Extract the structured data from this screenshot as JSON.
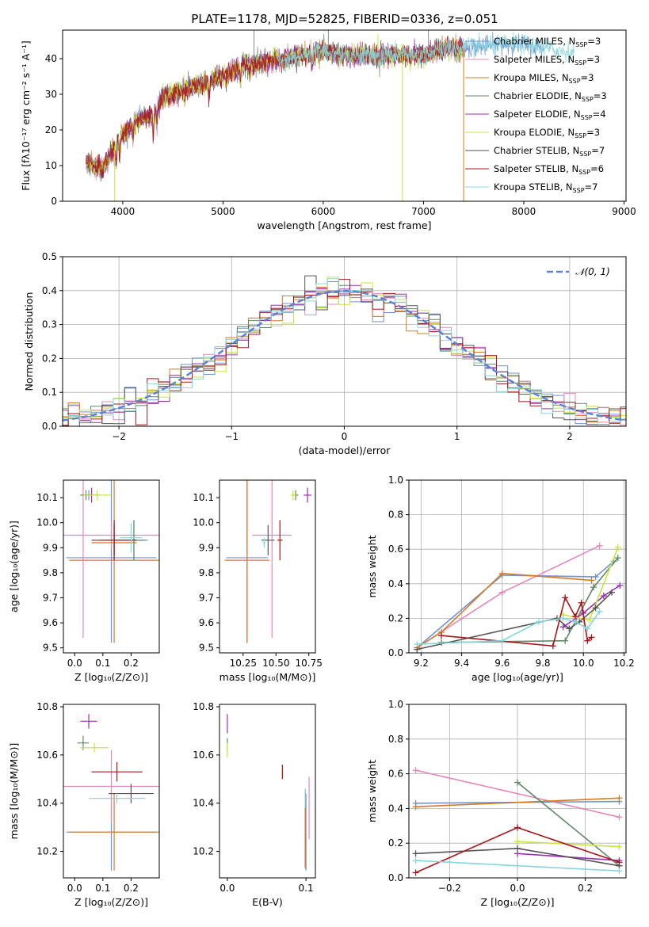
{
  "figure_title": "PLATE=1178, MJD=52825, FIBERID=0336, z=0.051",
  "colors": [
    "#6f93d6",
    "#e687b9",
    "#d87a23",
    "#5f8a67",
    "#9b2fb5",
    "#c8e63a",
    "#555555",
    "#a8161a",
    "#87d6dc"
  ],
  "chart_data": [
    {
      "id": "spectrum",
      "type": "line",
      "xlabel": "wavelength [Angstrom, rest frame]",
      "ylabel": "Flux [fλ10⁻¹⁷ erg cm⁻² s⁻¹ A⁻¹]",
      "xlim": [
        3400,
        9020
      ],
      "ylim": [
        0,
        48
      ],
      "xticks": [
        4000,
        5000,
        6000,
        7000,
        8000,
        9000
      ],
      "yticks": [
        0,
        10,
        20,
        30,
        40
      ],
      "grid": false,
      "legend_position": "right",
      "legend": [
        {
          "label": "Chabrier MILES, N",
          "sub": "SSP",
          "suffix": "=3"
        },
        {
          "label": "Salpeter MILES, N",
          "sub": "SSP",
          "suffix": "=3"
        },
        {
          "label": "Kroupa MILES, N",
          "sub": "SSP",
          "suffix": "=3"
        },
        {
          "label": "Chabrier ELODIE, N",
          "sub": "SSP",
          "suffix": "=3"
        },
        {
          "label": "Salpeter ELODIE, N",
          "sub": "SSP",
          "suffix": "=4"
        },
        {
          "label": "Kroupa ELODIE, N",
          "sub": "SSP",
          "suffix": "=3"
        },
        {
          "label": "Chabrier STELIB, N",
          "sub": "SSP",
          "suffix": "=7"
        },
        {
          "label": "Salpeter STELIB, N",
          "sub": "SSP",
          "suffix": "=6"
        },
        {
          "label": "Kroupa STELIB, N",
          "sub": "SSP",
          "suffix": "=7"
        }
      ],
      "continuum": [
        [
          3630,
          11
        ],
        [
          3800,
          9
        ],
        [
          3950,
          17
        ],
        [
          4100,
          22
        ],
        [
          4300,
          24
        ],
        [
          4400,
          29
        ],
        [
          4600,
          31
        ],
        [
          4800,
          33
        ],
        [
          5000,
          35
        ],
        [
          5200,
          38
        ],
        [
          5400,
          39
        ],
        [
          5600,
          40
        ],
        [
          5800,
          41
        ],
        [
          6000,
          42
        ],
        [
          6200,
          41
        ],
        [
          6400,
          41
        ],
        [
          6600,
          41
        ],
        [
          6800,
          41
        ],
        [
          7000,
          41
        ],
        [
          7200,
          43
        ],
        [
          7400,
          43
        ],
        [
          7800,
          44
        ],
        [
          8000,
          44
        ],
        [
          8200,
          43
        ],
        [
          8400,
          42
        ],
        [
          8650,
          42
        ]
      ],
      "features": [
        [
          3934,
          -6
        ],
        [
          3968,
          -5
        ],
        [
          4101,
          -4
        ],
        [
          4305,
          -6
        ],
        [
          4340,
          -4
        ],
        [
          4861,
          -5
        ],
        [
          5175,
          -4
        ],
        [
          5270,
          -3
        ],
        [
          5890,
          -3
        ],
        [
          6563,
          -3
        ],
        [
          6870,
          -2
        ]
      ],
      "wide_lines": [
        [
          3634,
          8200
        ],
        [
          5540,
          8500
        ]
      ],
      "dips": [
        {
          "x": 3920,
          "to": 0
        },
        {
          "x": 6790,
          "to": 0
        },
        {
          "x": 7400,
          "to": 0
        }
      ],
      "spikes": [
        {
          "x": 5310,
          "to": 48
        },
        {
          "x": 6050,
          "to": 48
        },
        {
          "x": 7050,
          "to": 48
        }
      ]
    },
    {
      "id": "residuals",
      "type": "step",
      "xlabel": "(data-model)/error",
      "ylabel": "Normed distribution",
      "xlim": [
        -2.5,
        2.5
      ],
      "ylim": [
        0,
        0.5
      ],
      "xticks": [
        -2,
        -1,
        0,
        1,
        2
      ],
      "yticks": [
        0.0,
        0.1,
        0.2,
        0.3,
        0.4,
        0.5
      ],
      "grid": true,
      "bin_width": 0.1,
      "legend_position": "upper right",
      "reference_label": "𝒩(0, 1)",
      "reference_color": "#5b82d9"
    },
    {
      "id": "age_vs_Z",
      "type": "errorbar",
      "xlabel": "Z [log₁₀(Z/Z⊙)]",
      "ylabel": "age  [log₁₀(age/yr)]",
      "xlim": [
        -0.04,
        0.3
      ],
      "ylim": [
        9.48,
        10.17
      ],
      "xticks": [
        0.0,
        0.1,
        0.2
      ],
      "yticks": [
        9.5,
        9.6,
        9.7,
        9.8,
        9.9,
        10.0,
        10.1
      ],
      "points": [
        {
          "c": 0,
          "x": 0.05,
          "y": 10.11,
          "xe": 0.03,
          "ye": 0.02
        },
        {
          "c": 0,
          "x": 0.13,
          "y": 9.86,
          "xe": 0.16,
          "ye": 0.34
        },
        {
          "c": 0,
          "x": 0.21,
          "y": 9.93,
          "xe": 0.05,
          "ye": 0.08
        },
        {
          "c": 1,
          "x": 0.03,
          "y": 9.95,
          "xe": 0.02,
          "ye": 0.41
        },
        {
          "c": 1,
          "x": 0.13,
          "y": 9.95,
          "xe": 0.17,
          "ye": 0.05
        },
        {
          "c": 2,
          "x": 0.14,
          "y": 9.85,
          "xe": 0.16,
          "ye": 0.33
        },
        {
          "c": 2,
          "x": 0.14,
          "y": 9.92,
          "xe": 0.08,
          "ye": 0.05
        },
        {
          "c": 3,
          "x": 0.04,
          "y": 10.11,
          "xe": 0.02,
          "ye": 0.02
        },
        {
          "c": 3,
          "x": 0.21,
          "y": 9.93,
          "xe": 0.04,
          "ye": 0.08
        },
        {
          "c": 4,
          "x": 0.06,
          "y": 10.11,
          "xe": 0.03,
          "ye": 0.03
        },
        {
          "c": 5,
          "x": 0.08,
          "y": 10.11,
          "xe": 0.05,
          "ye": 0.02
        },
        {
          "c": 6,
          "x": 0.14,
          "y": 9.93,
          "xe": 0.05,
          "ye": 0.06
        },
        {
          "c": 7,
          "x": 0.14,
          "y": 9.93,
          "xe": 0.08,
          "ye": 0.08
        },
        {
          "c": 8,
          "x": 0.2,
          "y": 9.94,
          "xe": 0.04,
          "ye": 0.06
        }
      ]
    },
    {
      "id": "age_vs_mass",
      "type": "errorbar",
      "xlabel": "mass [log₁₀(M/M⊙)]",
      "ylabel": "",
      "xlim": [
        10.07,
        10.8
      ],
      "ylim": [
        9.48,
        10.17
      ],
      "xticks": [
        10.25,
        10.5,
        10.75
      ],
      "yticks": [
        9.5,
        9.6,
        9.7,
        9.8,
        9.9,
        10.0,
        10.1
      ],
      "points": [
        {
          "c": 0,
          "x": 10.28,
          "y": 9.86,
          "xe": 0.16,
          "ye": 0.34
        },
        {
          "c": 1,
          "x": 10.47,
          "y": 9.95,
          "xe": 0.15,
          "ye": 0.41
        },
        {
          "c": 2,
          "x": 10.28,
          "y": 9.85,
          "xe": 0.17,
          "ye": 0.33
        },
        {
          "c": 3,
          "x": 10.65,
          "y": 10.11,
          "xe": 0.02,
          "ye": 0.02
        },
        {
          "c": 4,
          "x": 10.74,
          "y": 10.11,
          "xe": 0.03,
          "ye": 0.03
        },
        {
          "c": 5,
          "x": 10.63,
          "y": 10.11,
          "xe": 0.02,
          "ye": 0.02
        },
        {
          "c": 6,
          "x": 10.44,
          "y": 9.93,
          "xe": 0.05,
          "ye": 0.06
        },
        {
          "c": 7,
          "x": 10.53,
          "y": 9.93,
          "xe": 0.02,
          "ye": 0.08
        },
        {
          "c": 8,
          "x": 10.41,
          "y": 9.92,
          "xe": 0.01,
          "ye": 0.02
        }
      ]
    },
    {
      "id": "weight_vs_age",
      "type": "line",
      "xlabel": "age  [log₁₀(age/yr)]",
      "ylabel": "mass weight",
      "xlim": [
        9.14,
        10.21
      ],
      "ylim": [
        0,
        1.0
      ],
      "xticks": [
        9.2,
        9.4,
        9.6,
        9.8,
        10.0,
        10.2
      ],
      "yticks": [
        0.0,
        0.2,
        0.4,
        0.6,
        0.8,
        1.0
      ],
      "grid": true,
      "series": [
        {
          "c": 0,
          "x": [
            9.18,
            9.6,
            10.06,
            10.15
          ],
          "y": [
            0.03,
            0.45,
            0.44,
            0.53
          ]
        },
        {
          "c": 1,
          "x": [
            9.18,
            9.6,
            10.08
          ],
          "y": [
            0.03,
            0.35,
            0.62
          ]
        },
        {
          "c": 2,
          "x": [
            9.18,
            9.3,
            9.6,
            10.04
          ],
          "y": [
            0.03,
            0.12,
            0.46,
            0.42
          ]
        },
        {
          "c": 3,
          "x": [
            9.3,
            9.91,
            10.05,
            10.17
          ],
          "y": [
            0.06,
            0.07,
            0.38,
            0.55
          ]
        },
        {
          "c": 4,
          "x": [
            9.9,
            10.0,
            10.1,
            10.18
          ],
          "y": [
            0.15,
            0.23,
            0.33,
            0.39
          ]
        },
        {
          "c": 5,
          "x": [
            9.9,
            10.03,
            10.17
          ],
          "y": [
            0.22,
            0.19,
            0.61
          ]
        },
        {
          "c": 6,
          "x": [
            9.18,
            9.87,
            9.93,
            9.98,
            10.06,
            10.14
          ],
          "y": [
            0.02,
            0.2,
            0.14,
            0.18,
            0.26,
            0.35
          ]
        },
        {
          "c": 7,
          "x": [
            9.3,
            9.85,
            9.91,
            9.96,
            9.99,
            10.02,
            10.04
          ],
          "y": [
            0.1,
            0.04,
            0.32,
            0.21,
            0.29,
            0.07,
            0.09
          ]
        },
        {
          "c": 8,
          "x": [
            9.18,
            9.6,
            9.78,
            9.9,
            9.96,
            10.02,
            10.08
          ],
          "y": [
            0.05,
            0.07,
            0.18,
            0.2,
            0.18,
            0.14,
            0.24
          ]
        }
      ]
    },
    {
      "id": "mass_vs_Z",
      "type": "errorbar",
      "xlabel": "Z [log₁₀(Z/Z⊙)]",
      "ylabel": "mass [log₁₀(M/M⊙)]",
      "xlim": [
        -0.04,
        0.3
      ],
      "ylim": [
        10.09,
        10.81
      ],
      "xticks": [
        0.0,
        0.1,
        0.2
      ],
      "yticks": [
        10.2,
        10.4,
        10.6,
        10.8
      ],
      "points": [
        {
          "c": 0,
          "x": 0.13,
          "y": 10.28,
          "xe": 0.16,
          "ye": 0.16
        },
        {
          "c": 1,
          "x": 0.13,
          "y": 10.47,
          "xe": 0.17,
          "ye": 0.15
        },
        {
          "c": 2,
          "x": 0.14,
          "y": 10.28,
          "xe": 0.16,
          "ye": 0.16
        },
        {
          "c": 3,
          "x": 0.03,
          "y": 10.65,
          "xe": 0.02,
          "ye": 0.03
        },
        {
          "c": 4,
          "x": 0.05,
          "y": 10.74,
          "xe": 0.03,
          "ye": 0.03
        },
        {
          "c": 5,
          "x": 0.07,
          "y": 10.63,
          "xe": 0.05,
          "ye": 0.02
        },
        {
          "c": 6,
          "x": 0.2,
          "y": 10.44,
          "xe": 0.08,
          "ye": 0.04
        },
        {
          "c": 7,
          "x": 0.15,
          "y": 10.53,
          "xe": 0.09,
          "ye": 0.04
        },
        {
          "c": 8,
          "x": 0.15,
          "y": 10.42,
          "xe": 0.1,
          "ye": 0.02
        }
      ]
    },
    {
      "id": "mass_vs_EBV",
      "type": "errorbar",
      "xlabel": "E(B-V)",
      "ylabel": "",
      "xlim": [
        -0.01,
        0.112
      ],
      "ylim": [
        10.09,
        10.81
      ],
      "xticks": [
        0.0,
        0.1
      ],
      "yticks": [
        10.2,
        10.4,
        10.6,
        10.8
      ],
      "points": [
        {
          "c": 0,
          "x": 0.1,
          "y": 10.28,
          "xe": 0,
          "ye": 0.16
        },
        {
          "c": 1,
          "x": 0.104,
          "y": 10.38,
          "xe": 0,
          "ye": 0.13
        },
        {
          "c": 2,
          "x": 0.099,
          "y": 10.28,
          "xe": 0,
          "ye": 0.15
        },
        {
          "c": 3,
          "x": 0.0,
          "y": 10.64,
          "xe": 0,
          "ye": 0.03
        },
        {
          "c": 4,
          "x": 0.0,
          "y": 10.73,
          "xe": 0,
          "ye": 0.04
        },
        {
          "c": 5,
          "x": 0.0,
          "y": 10.62,
          "xe": 0,
          "ye": 0.03
        },
        {
          "c": 6,
          "x": 0.099,
          "y": 10.42,
          "xe": 0,
          "ye": 0.04
        },
        {
          "c": 7,
          "x": 0.07,
          "y": 10.53,
          "xe": 0,
          "ye": 0.03
        },
        {
          "c": 8,
          "x": 0.099,
          "y": 10.42,
          "xe": 0,
          "ye": 0.04
        }
      ]
    },
    {
      "id": "weight_vs_Z",
      "type": "line",
      "xlabel": "Z [log₁₀(Z/Z⊙)]",
      "ylabel": "mass weight",
      "xlim": [
        -0.32,
        0.32
      ],
      "ylim": [
        0,
        1.0
      ],
      "xticks": [
        -0.2,
        0.0,
        0.2
      ],
      "yticks": [
        0.0,
        0.2,
        0.4,
        0.6,
        0.8,
        1.0
      ],
      "grid": true,
      "series": [
        {
          "c": 0,
          "x": [
            -0.3,
            0.3
          ],
          "y": [
            0.43,
            0.44
          ]
        },
        {
          "c": 1,
          "x": [
            -0.3,
            0.3
          ],
          "y": [
            0.62,
            0.35
          ]
        },
        {
          "c": 2,
          "x": [
            -0.3,
            0.3
          ],
          "y": [
            0.41,
            0.46
          ]
        },
        {
          "c": 3,
          "x": [
            0.0,
            0.3
          ],
          "y": [
            0.55,
            0.07
          ]
        },
        {
          "c": 4,
          "x": [
            0.0,
            0.3
          ],
          "y": [
            0.14,
            0.1
          ]
        },
        {
          "c": 5,
          "x": [
            0.0,
            0.3
          ],
          "y": [
            0.21,
            0.18
          ]
        },
        {
          "c": 6,
          "x": [
            -0.3,
            0.0,
            0.3
          ],
          "y": [
            0.14,
            0.17,
            0.07
          ]
        },
        {
          "c": 7,
          "x": [
            -0.3,
            0.0,
            0.3
          ],
          "y": [
            0.03,
            0.29,
            0.09
          ]
        },
        {
          "c": 8,
          "x": [
            -0.3,
            0.0,
            0.3
          ],
          "y": [
            0.1,
            0.07,
            0.04
          ]
        }
      ]
    }
  ]
}
